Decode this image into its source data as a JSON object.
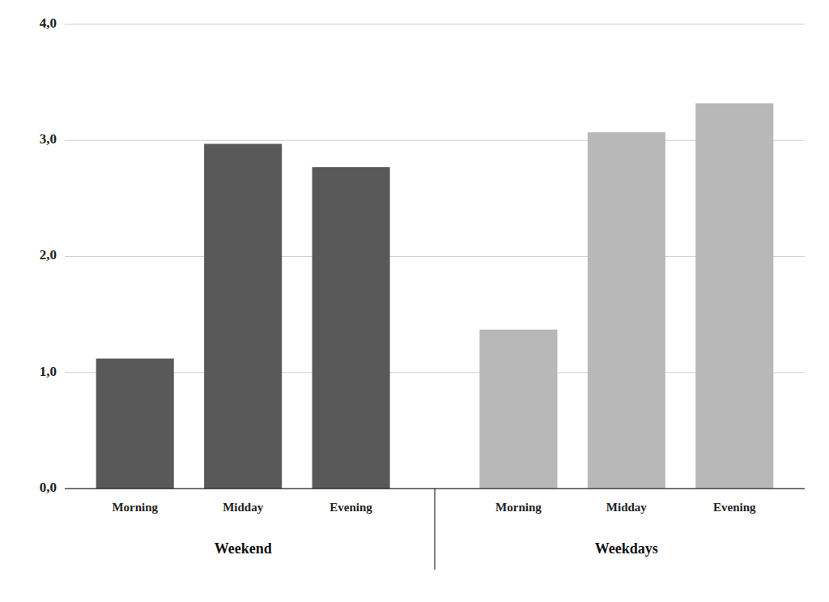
{
  "chart_data": {
    "type": "bar",
    "categories": [
      "Morning",
      "Midday",
      "Evening",
      "Morning",
      "Midday",
      "Evening"
    ],
    "values": [
      1.12,
      2.97,
      2.77,
      1.37,
      3.07,
      3.32
    ],
    "colors": [
      "#595959",
      "#595959",
      "#595959",
      "#b8b8b8",
      "#b8b8b8",
      "#b8b8b8"
    ],
    "annotations": [
      "Weekend",
      "Weekdays"
    ],
    "ylim": [
      0,
      4.0
    ],
    "yticks": [
      {
        "value": 0.0,
        "label": "0,0"
      },
      {
        "value": 1.0,
        "label": "1,0"
      },
      {
        "value": 2.0,
        "label": "2,0"
      },
      {
        "value": 3.0,
        "label": "3,0"
      },
      {
        "value": 4.0,
        "label": "4,0"
      }
    ],
    "grid": true
  }
}
